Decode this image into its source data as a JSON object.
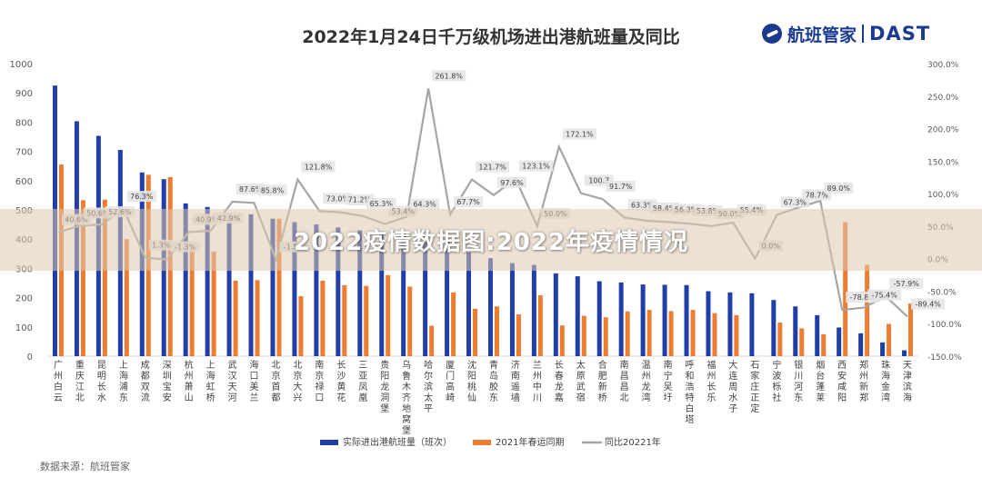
{
  "watermark_text": "2022疫情数据图:2022年疫情情况",
  "logo": {
    "cn": "航班管家",
    "en": "DAST",
    "icon": "airplane-logo-icon"
  },
  "source": "数据来源：航班管家",
  "colors": {
    "actual": "#1f3fa6",
    "last_year": "#ed7d31",
    "yoy": "#a6a6a6"
  },
  "chart_data": {
    "type": "bar",
    "title": "2022年1月24日千万级机场进出港航班量及同比",
    "categories": [
      "广州白云",
      "重庆江北",
      "昆明长水",
      "上海浦东",
      "成都双流",
      "深圳宝安",
      "杭州萧山",
      "上海虹桥",
      "武汉天河",
      "海口美兰",
      "北京首都",
      "北京大兴",
      "南京禄口",
      "长沙黄花",
      "三亚凤凰",
      "贵阳龙洞堡",
      "乌鲁木齐地窝堡",
      "哈尔滨太平",
      "厦门高崎",
      "沈阳桃仙",
      "青岛胶东",
      "济南遥墙",
      "兰州中川",
      "长春龙嘉",
      "太原武宿",
      "合肥新桥",
      "南昌昌北",
      "温州龙湾",
      "南宁吴圩",
      "呼和浩特白塔",
      "福州长乐",
      "大连周水子",
      "石家庄正定",
      "宁波栎社",
      "银川河东",
      "烟台蓬莱",
      "西安咸阳",
      "郑州新郑",
      "珠海金湾",
      "天津滨海"
    ],
    "series": [
      {
        "name": "实际进出港航班量（班次）",
        "axis": "left",
        "values": [
          925,
          803,
          753,
          705,
          628,
          605,
          522,
          510,
          488,
          485,
          470,
          458,
          450,
          440,
          430,
          425,
          420,
          415,
          400,
          355,
          335,
          318,
          312,
          283,
          273,
          256,
          252,
          245,
          244,
          243,
          222,
          218,
          215,
          192,
          170,
          140,
          98,
          78,
          47,
          20
        ]
      },
      {
        "name": "2021年春运同期",
        "axis": "left",
        "values": [
          655,
          533,
          535,
          400,
          620,
          612,
          370,
          357,
          258,
          260,
          470,
          205,
          258,
          243,
          240,
          277,
          238,
          104,
          218,
          162,
          170,
          143,
          208,
          105,
          138,
          133,
          153,
          158,
          154,
          158,
          147,
          140,
          0,
          115,
          95,
          75,
          458,
          312,
          110,
          180
        ]
      },
      {
        "name": "同比20221年",
        "axis": "right",
        "values": [
          40.6,
          50.6,
          52.6,
          76.3,
          1.3,
          -1.3,
          40.9,
          42.9,
          87.6,
          85.8,
          -1.5,
          121.8,
          73.0,
          71.2,
          65.3,
          53.4,
          64.3,
          261.8,
          67.7,
          121.7,
          97.6,
          123.1,
          50.0,
          172.1,
          100.7,
          91.7,
          63.3,
          58.4,
          56.3,
          53.8,
          50.0,
          55.4,
          0.0,
          67.3,
          78.7,
          89.0,
          -78.8,
          -75.4,
          -57.9,
          -89.4
        ]
      }
    ],
    "data_labels": [
      "40.6%",
      "50.6%",
      "52.6%",
      "76.3%",
      "1.3%",
      "-1.3%",
      "40.9%",
      "42.9%",
      "87.6%",
      "85.8%",
      "-1.5%",
      "121.8%",
      "73.0%",
      "71.2%",
      "65.3%",
      "53.4%",
      "64.3%",
      "261.8%",
      "67.7%",
      "121.7%",
      "97.6%",
      "123.1%",
      "50.0%",
      "172.1%",
      "100.7",
      "91.7%",
      "63.3%",
      "58.4%",
      "56.3%",
      "53.8%",
      "50.0%",
      "55.4%",
      "0.0%",
      "67.3%",
      "78.7%",
      "89.0%",
      "-78.8%",
      "-75.4%",
      "-57.9%",
      "-89.4%"
    ],
    "y_left": {
      "ylim": [
        0,
        1000
      ],
      "ticks": [
        "0",
        "100",
        "200",
        "300",
        "400",
        "500",
        "600",
        "700",
        "800",
        "900",
        "1000"
      ]
    },
    "y_right": {
      "ylim": [
        -150,
        300
      ],
      "ticks": [
        "-150.0%",
        "-100.0%",
        "-50.0%",
        "0.0%",
        "50.0%",
        "100.0%",
        "150.0%",
        "200.0%",
        "250.0%",
        "300.0%"
      ]
    },
    "grid": false,
    "legend_position": "bottom"
  }
}
